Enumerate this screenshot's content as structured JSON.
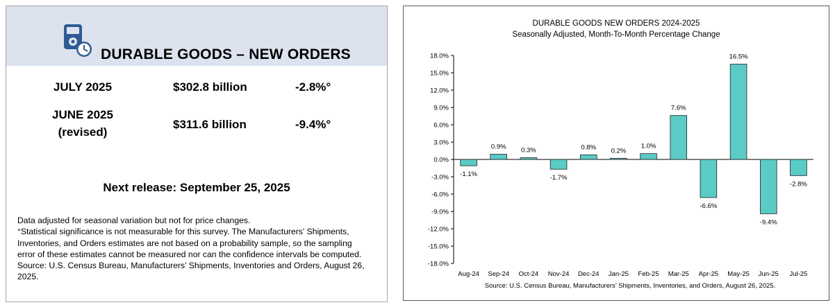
{
  "left_panel": {
    "title": "DURABLE GOODS – NEW ORDERS",
    "icon": "calculator-clock-icon",
    "rows": [
      {
        "period": "JULY 2025",
        "period_note": "",
        "amount": "$302.8 billion",
        "change": "-2.8%°"
      },
      {
        "period": "JUNE 2025",
        "period_note": "(revised)",
        "amount": "$311.6 billion",
        "change": "-9.4%°"
      }
    ],
    "next_release": "Next release:  September 25, 2025",
    "notes": [
      "Data adjusted for seasonal variation but not for price changes.",
      "°Statistical significance is not measurable for this survey.  The Manufacturers' Shipments,",
      "Inventories, and Orders estimates are not based on a probability sample, so the sampling",
      "error of these estimates cannot be measured nor can the confidence intervals be computed.",
      "Source: U.S. Census Bureau, Manufacturers’ Shipments, Inventories and Orders, August 26,",
      "2025."
    ],
    "colors": {
      "header_bg": "#dce3ef",
      "icon": "#2e5b93"
    }
  },
  "chart_data": {
    "type": "bar",
    "title": "DURABLE GOODS NEW ORDERS 2024-2025",
    "subtitle": "Seasonally Adjusted,  Month-To-Month Percentage Change",
    "categories": [
      "Aug-24",
      "Sep-24",
      "Oct-24",
      "Nov-24",
      "Dec-24",
      "Jan-25",
      "Feb-25",
      "Mar-25",
      "Apr-25",
      "May-25",
      "Jun-25",
      "Jul-25"
    ],
    "values": [
      -1.1,
      0.9,
      0.3,
      -1.7,
      0.8,
      0.2,
      1.0,
      7.6,
      -6.6,
      16.5,
      -9.4,
      -2.8
    ],
    "value_labels": [
      "-1.1%",
      "0.9%",
      "0.3%",
      "-1.7%",
      "0.8%",
      "0.2%",
      "1.0%",
      "7.6%",
      "-6.6%",
      "16.5%",
      "-9.4%",
      "-2.8%"
    ],
    "yticks": [
      18,
      15,
      12,
      9,
      6,
      3,
      0,
      -3,
      -6,
      -9,
      -12,
      -15,
      -18
    ],
    "ytick_labels": [
      "18.0%",
      "15.0%",
      "12.0%",
      "9.0%",
      "6.0%",
      "3.0%",
      "0.0%",
      "-3.0%",
      "-6.0%",
      "-9.0%",
      "-12.0%",
      "-15.0%",
      "-18.0%"
    ],
    "ylim": [
      -18,
      18
    ],
    "xlabel": "",
    "ylabel": "",
    "grid": false,
    "bar_color": "#5bcbc6",
    "bar_edge_color": "#1f1f1f",
    "source": "Source: U.S. Census Bureau, Manufacturers’ Shipments, Inventories, and Orders, August 26, 2025."
  }
}
